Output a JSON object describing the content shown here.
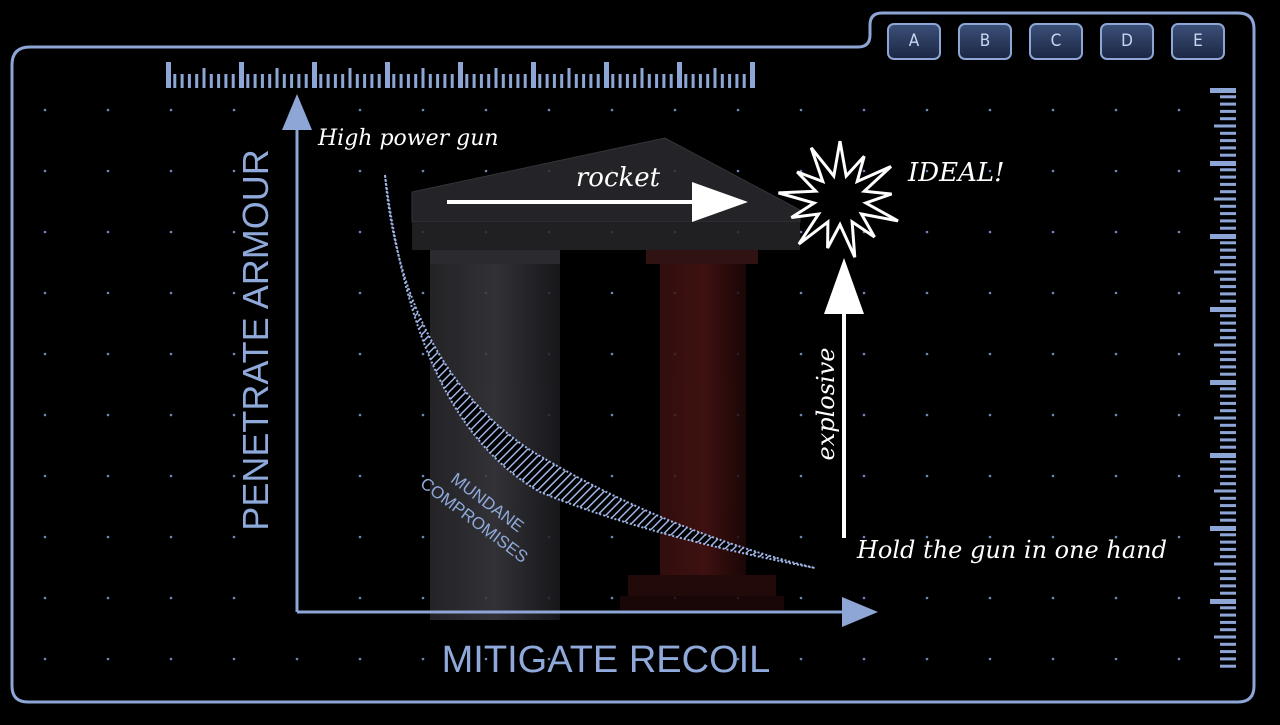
{
  "tabs": [
    "A",
    "B",
    "C",
    "D",
    "E"
  ],
  "axes": {
    "y_label": "PENETRATE ARMOUR",
    "x_label": "MITIGATE RECOIL"
  },
  "annotations": {
    "top_left": "High power gun",
    "top_arrow": "rocket",
    "ideal": "IDEAL!",
    "vertical_arrow": "explosive",
    "bottom_right": "Hold the gun in one hand",
    "band_line1": "MUNDANE",
    "band_line2": "COMPROMISES"
  },
  "colors": {
    "frame": "#8ea6d6",
    "accent_text": "#8fa9da",
    "annotation_text": "#ffffff",
    "background": "#000000"
  }
}
